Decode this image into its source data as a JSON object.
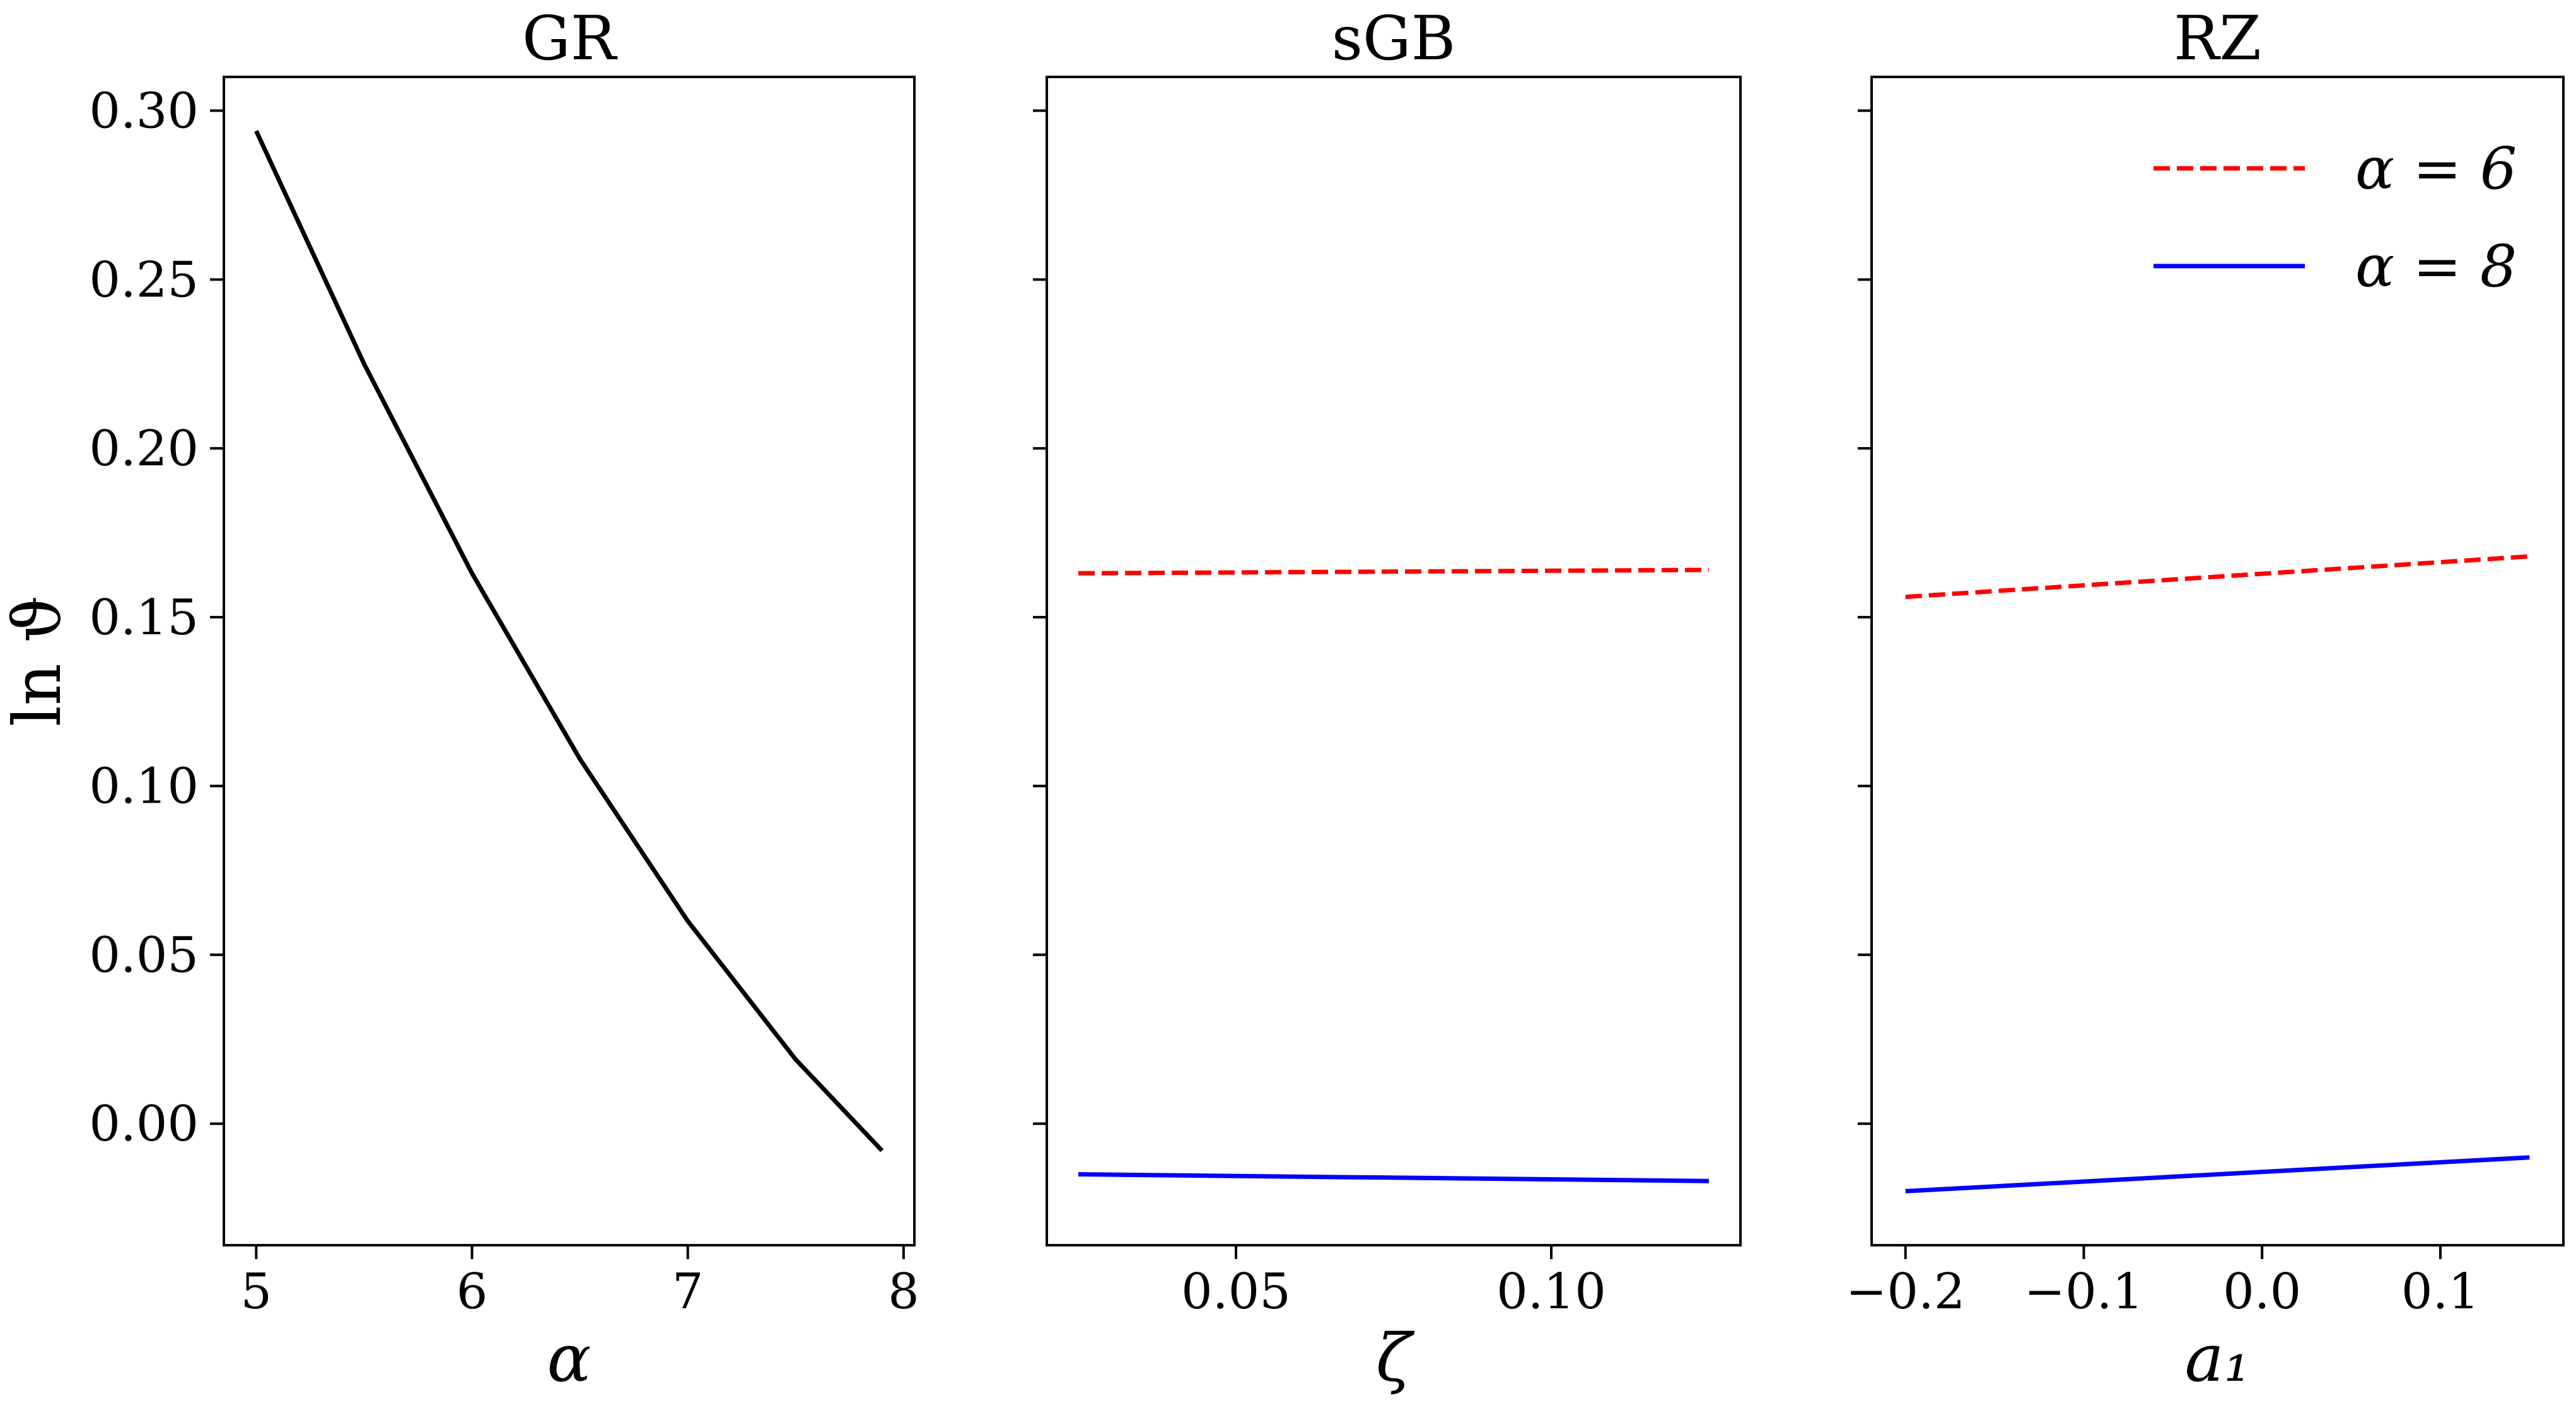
{
  "chart_data": [
    {
      "type": "line",
      "title": "GR",
      "xlabel": "α",
      "ylabel": "ln ϑ",
      "xlim": [
        4.85,
        8.05
      ],
      "ylim": [
        -0.036,
        0.31
      ],
      "xticks": [
        5,
        6,
        7,
        8
      ],
      "xtick_labels": [
        "5",
        "6",
        "7",
        "8"
      ],
      "yticks": [
        0.0,
        0.05,
        0.1,
        0.15,
        0.2,
        0.25,
        0.3
      ],
      "ytick_labels": [
        "0.00",
        "0.05",
        "0.10",
        "0.15",
        "0.20",
        "0.25",
        "0.30"
      ],
      "series": [
        {
          "color": "#000000",
          "dash": "solid",
          "x": [
            5.0,
            5.5,
            6.0,
            6.5,
            7.0,
            7.5,
            7.9
          ],
          "y": [
            0.294,
            0.225,
            0.163,
            0.108,
            0.06,
            0.019,
            -0.008
          ]
        }
      ]
    },
    {
      "type": "line",
      "title": "sGB",
      "xlabel": "ζ",
      "xlim": [
        0.02,
        0.13
      ],
      "ylim": [
        -0.036,
        0.31
      ],
      "xticks": [
        0.05,
        0.1
      ],
      "xtick_labels": [
        "0.05",
        "0.10"
      ],
      "yticks": [
        0.0,
        0.05,
        0.1,
        0.15,
        0.2,
        0.25,
        0.3
      ],
      "series": [
        {
          "color": "#ff0000",
          "dash": "dashed",
          "x": [
            0.025,
            0.125
          ],
          "y": [
            0.163,
            0.164
          ]
        },
        {
          "color": "#0000ff",
          "dash": "solid",
          "x": [
            0.025,
            0.125
          ],
          "y": [
            -0.015,
            -0.017
          ]
        }
      ]
    },
    {
      "type": "line",
      "title": "RZ",
      "xlabel": "a₁",
      "xlim": [
        -0.219,
        0.169
      ],
      "ylim": [
        -0.036,
        0.31
      ],
      "xticks": [
        -0.2,
        -0.1,
        0.0,
        0.1
      ],
      "xtick_labels": [
        "−0.2",
        "−0.1",
        "0.0",
        "0.1"
      ],
      "yticks": [
        0.0,
        0.05,
        0.1,
        0.15,
        0.2,
        0.25,
        0.3
      ],
      "legend_position": "top-right",
      "series": [
        {
          "name": "α = 6",
          "color": "#ff0000",
          "dash": "dashed",
          "x": [
            -0.2,
            0.15
          ],
          "y": [
            0.156,
            0.168
          ]
        },
        {
          "name": "α = 8",
          "color": "#0000ff",
          "dash": "solid",
          "x": [
            -0.2,
            0.15
          ],
          "y": [
            -0.02,
            -0.01
          ]
        }
      ]
    }
  ]
}
